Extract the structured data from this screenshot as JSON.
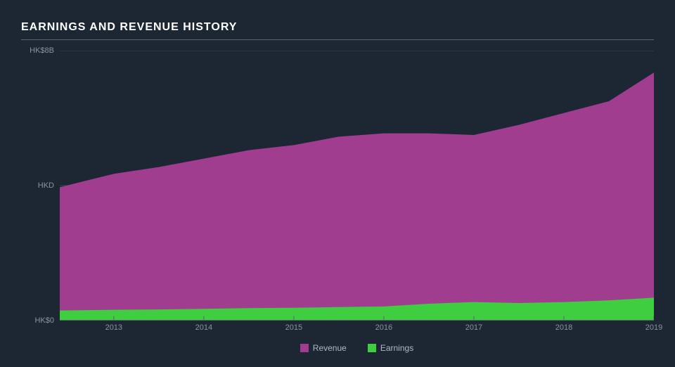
{
  "title": "EARNINGS AND REVENUE HISTORY",
  "chart": {
    "type": "area",
    "background_color": "#1d2733",
    "grid_color": "#3a4452",
    "axis_color": "#5a6470",
    "label_color": "#8a94a0",
    "label_fontsize": 11,
    "title_color": "#ffffff",
    "title_fontsize": 16,
    "ylim": [
      0,
      8
    ],
    "y_ticks": [
      {
        "value": 0,
        "label": "HK$0"
      },
      {
        "value": 4,
        "label": "HKD"
      },
      {
        "value": 8,
        "label": "HK$8B"
      }
    ],
    "x_ticks": [
      {
        "value": 2013,
        "label": "2013"
      },
      {
        "value": 2014,
        "label": "2014"
      },
      {
        "value": 2015,
        "label": "2015"
      },
      {
        "value": 2016,
        "label": "2016"
      },
      {
        "value": 2017,
        "label": "2017"
      },
      {
        "value": 2018,
        "label": "2018"
      },
      {
        "value": 2019,
        "label": "2019"
      }
    ],
    "xlim": [
      2012.4,
      2019
    ],
    "series": [
      {
        "name": "Revenue",
        "color": "#a13d8f",
        "fill_opacity": 1.0,
        "data": [
          {
            "x": 2012.4,
            "y": 3.95
          },
          {
            "x": 2013.0,
            "y": 4.35
          },
          {
            "x": 2013.5,
            "y": 4.55
          },
          {
            "x": 2014.0,
            "y": 4.8
          },
          {
            "x": 2014.5,
            "y": 5.05
          },
          {
            "x": 2015.0,
            "y": 5.2
          },
          {
            "x": 2015.5,
            "y": 5.45
          },
          {
            "x": 2016.0,
            "y": 5.55
          },
          {
            "x": 2016.5,
            "y": 5.55
          },
          {
            "x": 2017.0,
            "y": 5.5
          },
          {
            "x": 2017.5,
            "y": 5.8
          },
          {
            "x": 2018.0,
            "y": 6.15
          },
          {
            "x": 2018.5,
            "y": 6.5
          },
          {
            "x": 2019.0,
            "y": 7.35
          }
        ]
      },
      {
        "name": "Earnings",
        "color": "#3fce3f",
        "fill_opacity": 1.0,
        "data": [
          {
            "x": 2012.4,
            "y": 0.3
          },
          {
            "x": 2013.0,
            "y": 0.32
          },
          {
            "x": 2013.5,
            "y": 0.33
          },
          {
            "x": 2014.0,
            "y": 0.35
          },
          {
            "x": 2014.5,
            "y": 0.37
          },
          {
            "x": 2015.0,
            "y": 0.38
          },
          {
            "x": 2015.5,
            "y": 0.4
          },
          {
            "x": 2016.0,
            "y": 0.42
          },
          {
            "x": 2016.5,
            "y": 0.5
          },
          {
            "x": 2017.0,
            "y": 0.55
          },
          {
            "x": 2017.5,
            "y": 0.52
          },
          {
            "x": 2018.0,
            "y": 0.55
          },
          {
            "x": 2018.5,
            "y": 0.6
          },
          {
            "x": 2019.0,
            "y": 0.68
          }
        ]
      }
    ],
    "legend": {
      "position": "bottom-center",
      "items": [
        {
          "label": "Revenue",
          "color": "#a13d8f"
        },
        {
          "label": "Earnings",
          "color": "#3fce3f"
        }
      ]
    }
  }
}
